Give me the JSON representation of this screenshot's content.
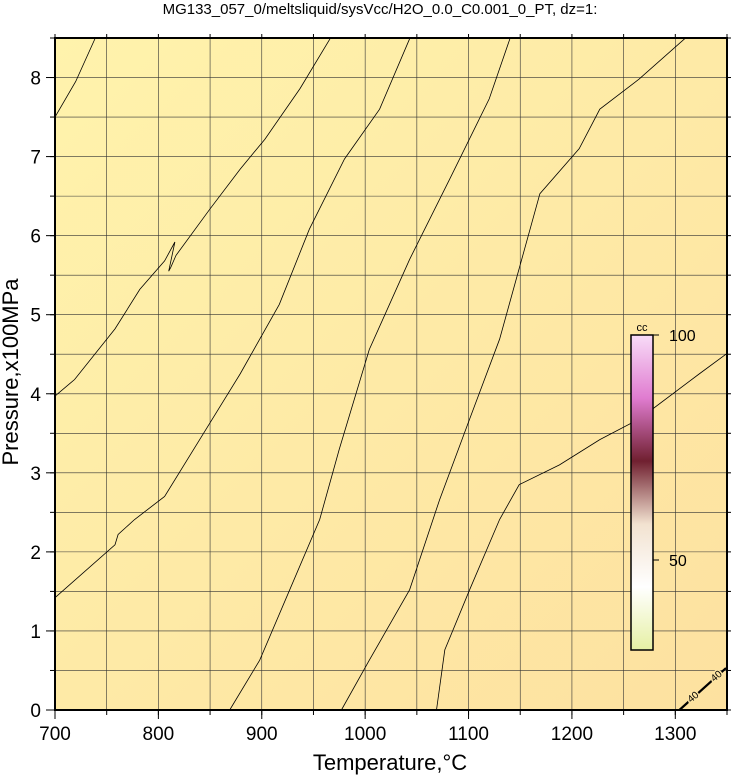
{
  "chart_data": {
    "type": "contour",
    "title": "MG133_057_0/meltsliquid/sysVcc/H2O_0.0_C0.001_0_PT, dz=1:",
    "x_label": "Temperature,°C",
    "y_label": "Pressure,x100MPa",
    "xlim": [
      700,
      1350
    ],
    "ylim": [
      0,
      8.5
    ],
    "xticks": [
      700,
      800,
      900,
      1000,
      1100,
      1200,
      1300
    ],
    "yticks": [
      0,
      1,
      2,
      3,
      4,
      5,
      6,
      7,
      8
    ],
    "x_grid": [
      700,
      750,
      800,
      850,
      900,
      950,
      1000,
      1050,
      1100,
      1150,
      1200,
      1250,
      1300,
      1350
    ],
    "y_grid": [
      0,
      0.5,
      1,
      1.5,
      2,
      2.5,
      3,
      3.5,
      4,
      4.5,
      5,
      5.5,
      6,
      6.5,
      7,
      7.5,
      8,
      8.5
    ],
    "background": [
      "#fff3ac",
      "#fde1a0"
    ],
    "line_color": "#000000",
    "series": [
      {
        "x": [
          700,
          720,
          739
        ],
        "y": [
          7.5,
          7.95,
          8.5
        ]
      },
      {
        "x": [
          700,
          719,
          758,
          782,
          806,
          816,
          810,
          812,
          817,
          850,
          879,
          903,
          937,
          966
        ],
        "y": [
          3.97,
          4.18,
          4.82,
          5.32,
          5.68,
          5.92,
          5.55,
          5.6,
          5.75,
          6.34,
          6.84,
          7.22,
          7.86,
          8.49
        ]
      },
      {
        "x": [
          700,
          758,
          761,
          777,
          806,
          840,
          879,
          917,
          946,
          980,
          1014,
          1043
        ],
        "y": [
          1.42,
          2.09,
          2.22,
          2.41,
          2.7,
          3.42,
          4.25,
          5.13,
          6.08,
          6.97,
          7.6,
          8.49
        ]
      },
      {
        "x": [
          869,
          898,
          927,
          956,
          975,
          1004,
          1043,
          1082,
          1120,
          1140
        ],
        "y": [
          0,
          0.63,
          1.52,
          2.41,
          3.3,
          4.56,
          5.7,
          6.72,
          7.73,
          8.49
        ]
      },
      {
        "x": [
          977,
          1004,
          1043,
          1072,
          1101,
          1130,
          1169,
          1207,
          1227,
          1265,
          1309
        ],
        "y": [
          0,
          0.63,
          1.52,
          2.66,
          3.68,
          4.69,
          6.53,
          7.1,
          7.6,
          7.98,
          8.49
        ]
      },
      {
        "x": [
          1069,
          1077,
          1101,
          1130,
          1149,
          1188,
          1227,
          1265,
          1323,
          1349
        ],
        "y": [
          0,
          0.76,
          1.52,
          2.41,
          2.85,
          3.1,
          3.42,
          3.68,
          4.25,
          4.5
        ]
      },
      {
        "name": "40",
        "x": [
          1304,
          1349
        ],
        "y": [
          0,
          0.53
        ]
      }
    ],
    "colorbar": {
      "label": "cc",
      "lim": [
        30,
        100
      ],
      "ticks": [
        50,
        100
      ],
      "colors": [
        "#f8dcf8",
        "#e07cd0",
        "#702030",
        "#f2e2d0",
        "#ffffff",
        "#e6f0a4"
      ]
    }
  }
}
